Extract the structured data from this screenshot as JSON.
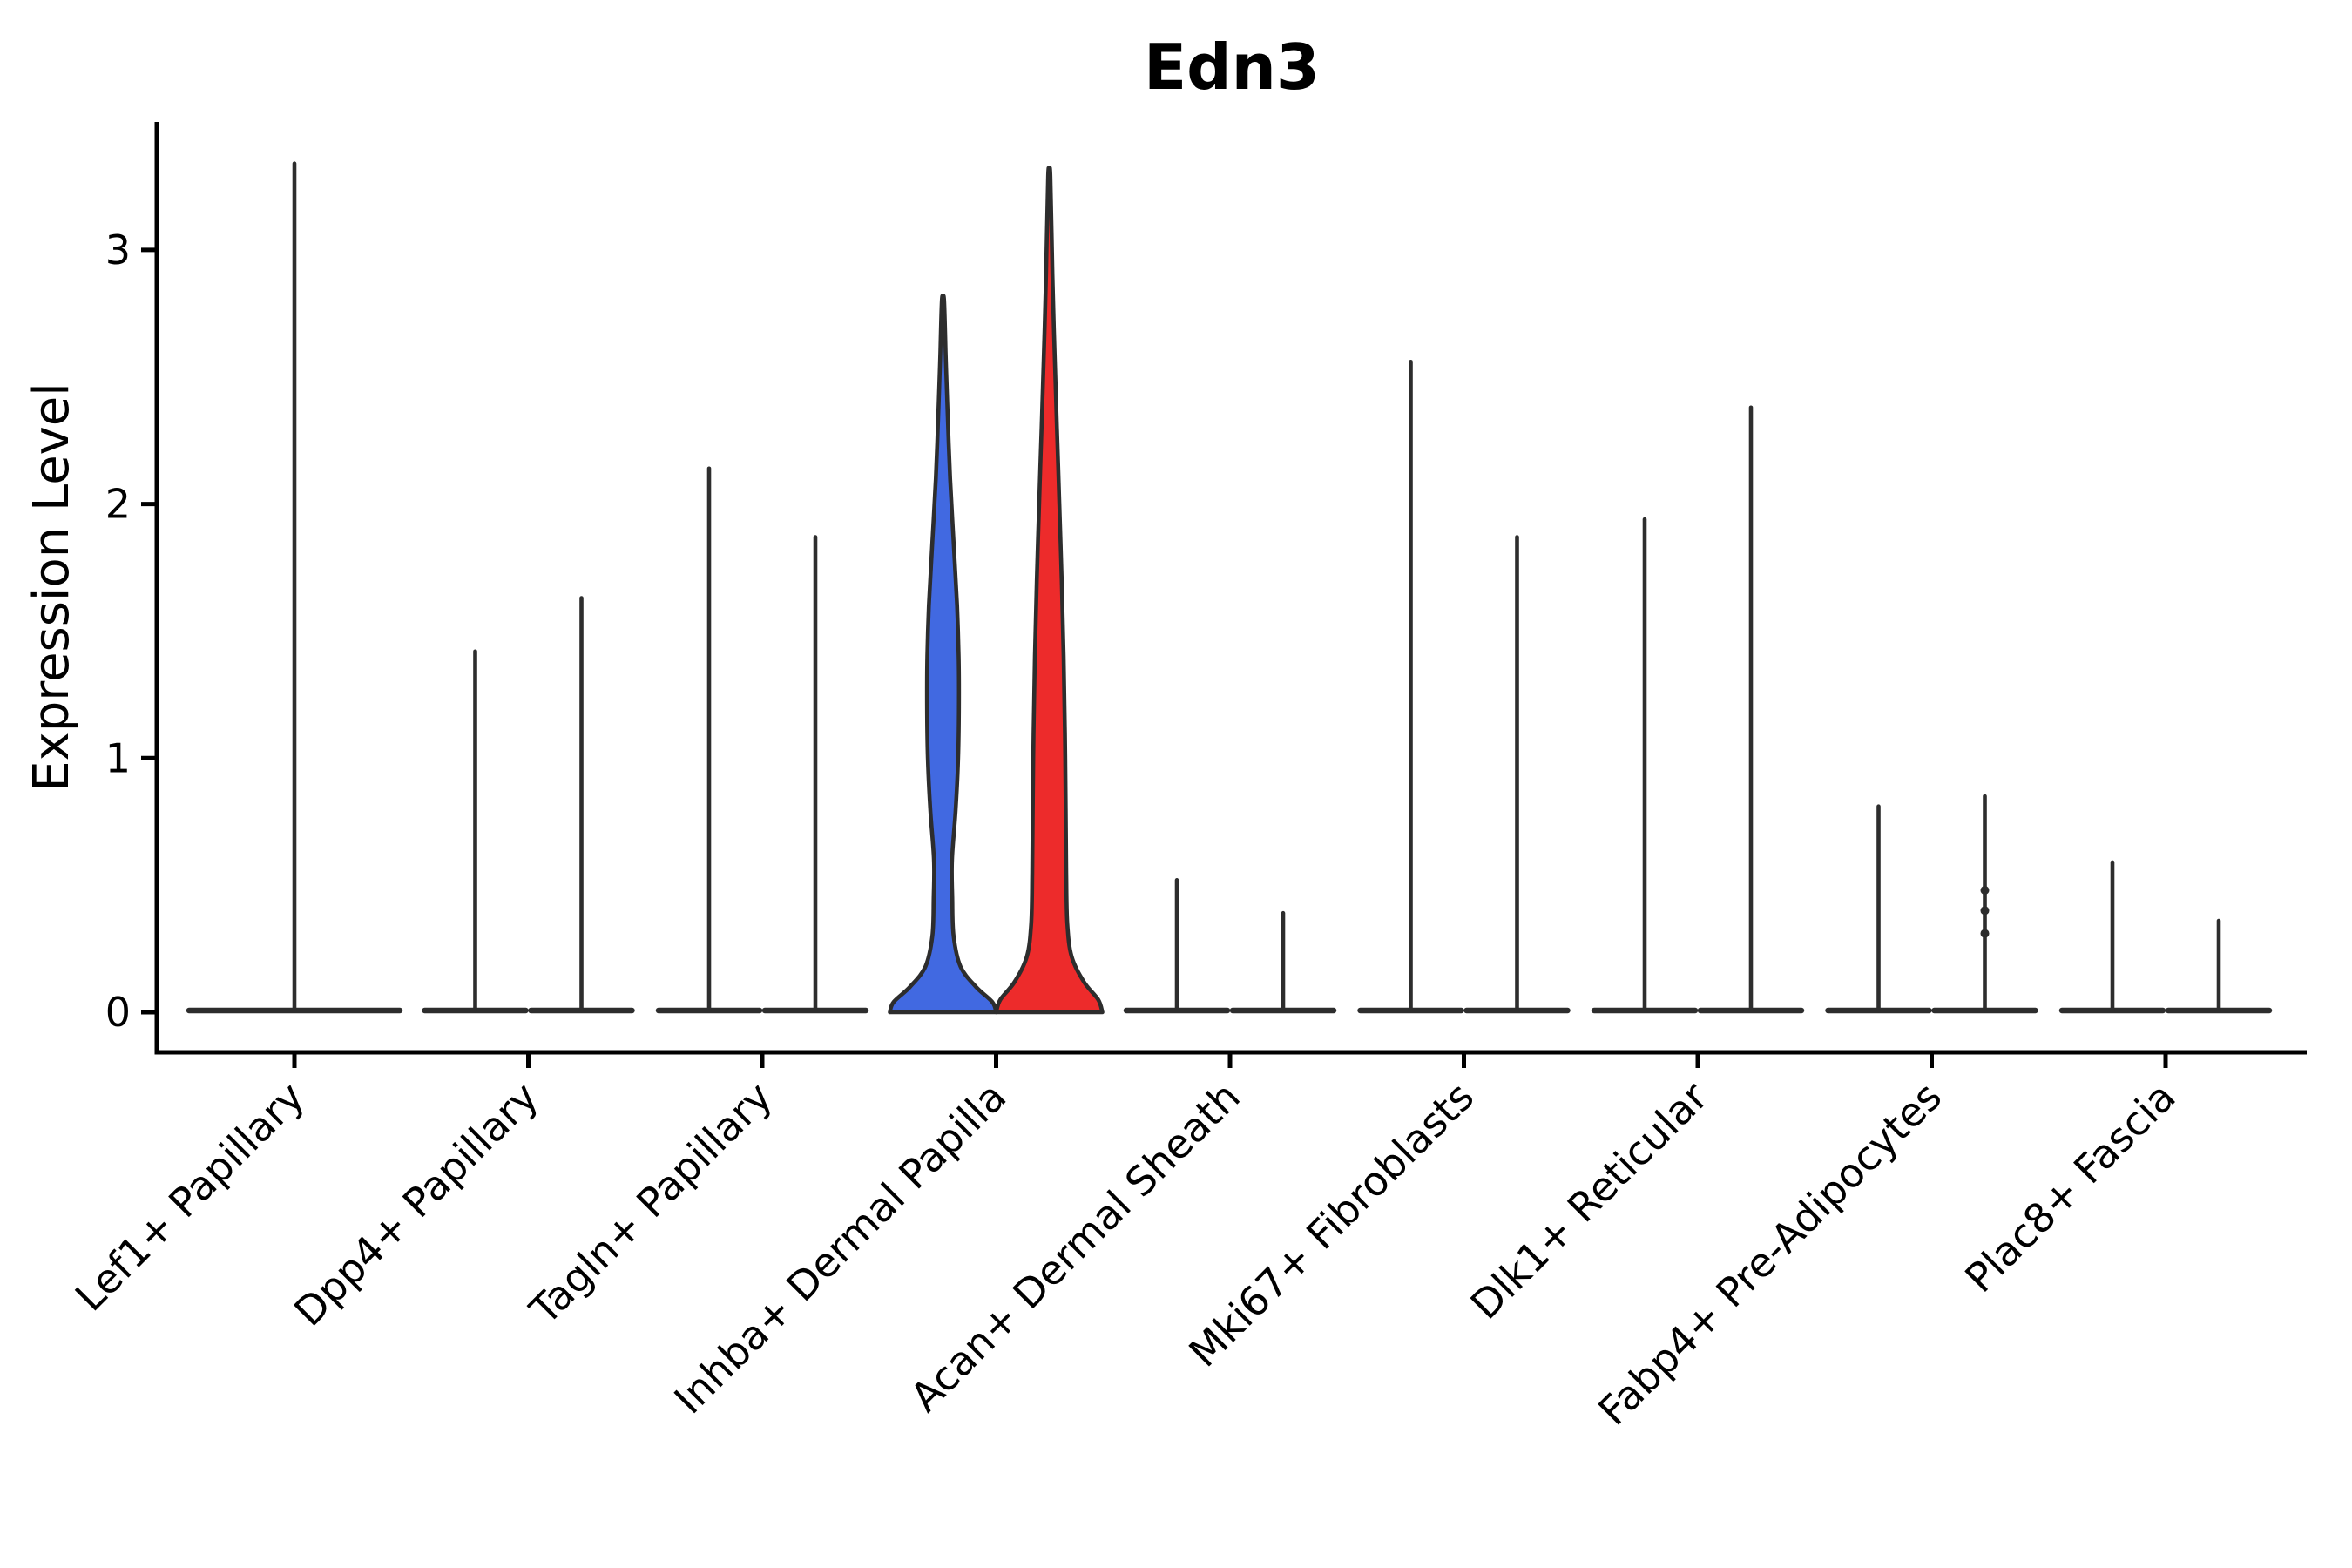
{
  "title": "Edn3",
  "y_axis": {
    "label": "Expression Level",
    "tick_labels": [
      "0",
      "1",
      "2",
      "3"
    ]
  },
  "colors": {
    "blue_violin_fill": "#4169E1",
    "red_violin_fill": "#ED2B2B",
    "violin_outline": "#2D2D2D",
    "axis": "#000000"
  },
  "chart_data": {
    "type": "violin",
    "title": "Edn3",
    "xlabel": "",
    "ylabel": "Expression Level",
    "yticks": [
      0,
      1,
      2,
      3
    ],
    "ylim": [
      -0.16,
      3.56
    ],
    "legend": "none",
    "grid": false,
    "categories": [
      "Lef1+ Papillary",
      "Dpp4+ Papillary",
      "Tagln+ Papillary",
      "Inhba+ Dermal Papilla",
      "Acan+ Dermal Sheath",
      "Mki67+ Fibroblasts",
      "Dlk1+ Reticular",
      "Fabp4+ Pre-Adipocytes",
      "Plac8+ Fascia"
    ],
    "description": "Violin plot of Edn3 expression; two violins per cell-type group (split condition), most near zero with thin density spikes; Inhba+ Dermal Papilla group shows two wide filled violins (blue and red).",
    "violins": [
      {
        "category_index": 0,
        "slot": "single",
        "style": "spike",
        "max": 3.34
      },
      {
        "category_index": 1,
        "slot": "left",
        "style": "spike",
        "max": 1.42
      },
      {
        "category_index": 1,
        "slot": "right",
        "style": "spike",
        "max": 1.63
      },
      {
        "category_index": 2,
        "slot": "left",
        "style": "spike",
        "max": 2.14
      },
      {
        "category_index": 2,
        "slot": "right",
        "style": "spike",
        "max": 1.87
      },
      {
        "category_index": 3,
        "slot": "left",
        "style": "filled",
        "fill": "#4169E1",
        "max": 2.8,
        "profile": [
          [
            0,
            1.0
          ],
          [
            0.04,
            0.93
          ],
          [
            0.1,
            0.62
          ],
          [
            0.18,
            0.33
          ],
          [
            0.3,
            0.2
          ],
          [
            0.45,
            0.175
          ],
          [
            0.6,
            0.17
          ],
          [
            0.8,
            0.24
          ],
          [
            1.0,
            0.285
          ],
          [
            1.2,
            0.3
          ],
          [
            1.4,
            0.295
          ],
          [
            1.6,
            0.265
          ],
          [
            1.85,
            0.2
          ],
          [
            2.1,
            0.135
          ],
          [
            2.4,
            0.08
          ],
          [
            2.6,
            0.05
          ],
          [
            2.8,
            0.022
          ]
        ]
      },
      {
        "category_index": 3,
        "slot": "right",
        "style": "filled",
        "fill": "#ED2B2B",
        "max": 3.29,
        "profile": [
          [
            0,
            1.0
          ],
          [
            0.05,
            0.92
          ],
          [
            0.12,
            0.65
          ],
          [
            0.22,
            0.42
          ],
          [
            0.35,
            0.34
          ],
          [
            0.55,
            0.32
          ],
          [
            0.8,
            0.31
          ],
          [
            1.1,
            0.295
          ],
          [
            1.4,
            0.27
          ],
          [
            1.7,
            0.235
          ],
          [
            2.0,
            0.19
          ],
          [
            2.3,
            0.145
          ],
          [
            2.6,
            0.1
          ],
          [
            2.9,
            0.06
          ],
          [
            3.29,
            0.022
          ]
        ]
      },
      {
        "category_index": 4,
        "slot": "left",
        "style": "spike",
        "max": 0.52
      },
      {
        "category_index": 4,
        "slot": "right",
        "style": "spike",
        "max": 0.39
      },
      {
        "category_index": 5,
        "slot": "left",
        "style": "spike",
        "max": 2.56
      },
      {
        "category_index": 5,
        "slot": "right",
        "style": "spike",
        "max": 1.87
      },
      {
        "category_index": 6,
        "slot": "left",
        "style": "spike",
        "max": 1.94
      },
      {
        "category_index": 6,
        "slot": "right",
        "style": "spike",
        "max": 2.38
      },
      {
        "category_index": 7,
        "slot": "left",
        "style": "spike",
        "max": 0.81
      },
      {
        "category_index": 7,
        "slot": "right",
        "style": "spike",
        "max": 0.85,
        "points": [
          0.48,
          0.4,
          0.31
        ]
      },
      {
        "category_index": 8,
        "slot": "left",
        "style": "spike",
        "max": 0.59
      },
      {
        "category_index": 8,
        "slot": "right",
        "style": "spike",
        "max": 0.36
      }
    ]
  }
}
